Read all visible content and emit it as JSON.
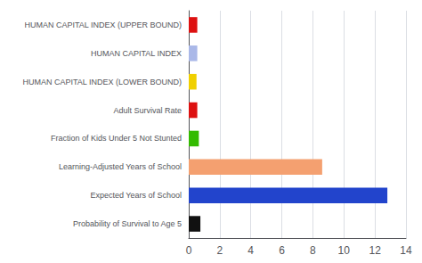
{
  "chart_data": {
    "type": "bar",
    "orientation": "horizontal",
    "categories": [
      "HUMAN CAPITAL INDEX (UPPER BOUND)",
      "HUMAN CAPITAL INDEX",
      "HUMAN CAPITAL INDEX (LOWER BOUND)",
      "Adult Survival Rate",
      "Fraction of Kids Under 5 Not Stunted",
      "Learning-Adjusted Years of School",
      "Expected Years of School",
      "Probability of Survival to Age 5"
    ],
    "values": [
      0.55,
      0.55,
      0.5,
      0.55,
      0.65,
      8.6,
      12.8,
      0.75
    ],
    "colors": [
      "#dd1111",
      "#aab8e8",
      "#f0d000",
      "#dd1111",
      "#33bb00",
      "#f4a070",
      "#2244cc",
      "#111111"
    ],
    "xlim": [
      0,
      14
    ],
    "xticks": [
      0,
      2,
      4,
      6,
      8,
      10,
      12,
      14
    ],
    "grid": true
  }
}
